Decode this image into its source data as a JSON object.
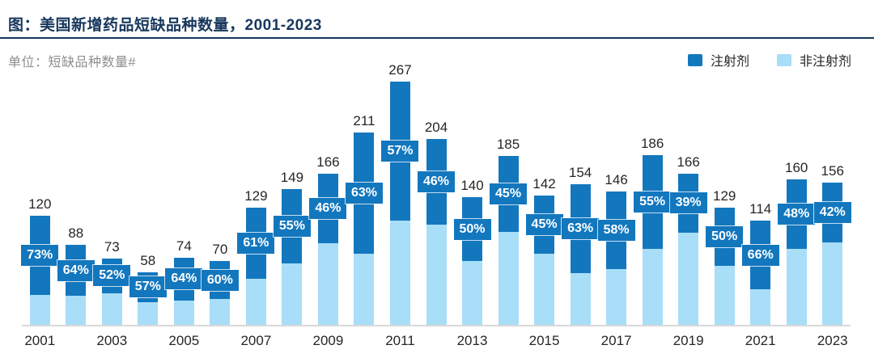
{
  "header": {
    "title": "图：美国新增药品短缺品种数量，2001-2023",
    "unit": "单位：短缺品种数量#"
  },
  "legend": {
    "items": [
      {
        "label": "注射剂",
        "color": "#1377BE"
      },
      {
        "label": "非注射剂",
        "color": "#A8DEF7"
      }
    ]
  },
  "colors": {
    "injection": "#1377BE",
    "non_injection": "#A8DEF7",
    "title_navy": "#17375D",
    "axis_line": "#D9D9D9",
    "label_text": "#262626",
    "pct_text": "#ffffff"
  },
  "chart_data": {
    "type": "bar",
    "subtype": "stacked",
    "title": "美国新增药品短缺品种数量，2001-2023",
    "xlabel": "",
    "ylabel": "短缺品种数量#",
    "grid": false,
    "legend_position": "top-right",
    "categories": [
      2001,
      2002,
      2003,
      2004,
      2005,
      2006,
      2007,
      2008,
      2009,
      2010,
      2011,
      2012,
      2013,
      2014,
      2015,
      2016,
      2017,
      2018,
      2019,
      2020,
      2021,
      2022,
      2023
    ],
    "totals": [
      120,
      88,
      73,
      58,
      74,
      70,
      129,
      149,
      166,
      211,
      267,
      204,
      140,
      185,
      142,
      154,
      146,
      186,
      166,
      129,
      114,
      160,
      156
    ],
    "series": [
      {
        "name": "注射剂",
        "color": "#1377BE",
        "share_pct": [
          73,
          64,
          52,
          57,
          64,
          60,
          61,
          55,
          46,
          63,
          57,
          46,
          50,
          45,
          45,
          63,
          58,
          55,
          39,
          50,
          66,
          48,
          42
        ]
      },
      {
        "name": "非注射剂",
        "color": "#A8DEF7",
        "share_pct": [
          27,
          36,
          48,
          43,
          36,
          40,
          39,
          45,
          54,
          37,
          43,
          54,
          50,
          55,
          55,
          37,
          42,
          45,
          61,
          50,
          34,
          52,
          58
        ]
      }
    ],
    "total_labels_shown": true,
    "pct_labels_shown_for": "注射剂",
    "x_ticks": [
      2001,
      2003,
      2005,
      2007,
      2009,
      2011,
      2013,
      2015,
      2017,
      2019,
      2021,
      2023
    ],
    "ylim": [
      0,
      280
    ]
  }
}
